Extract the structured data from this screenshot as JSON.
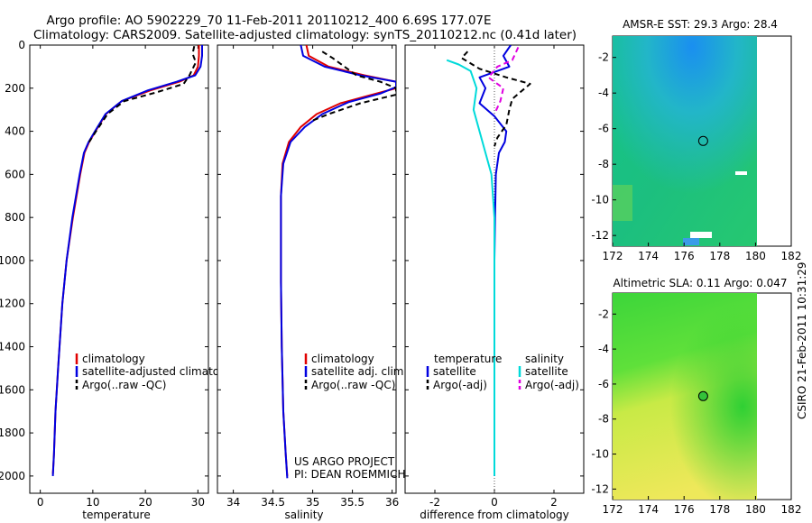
{
  "title": {
    "line1": "Argo profile: AO 5902229_70 11-Feb-2011 20110212_400 6.69S 177.07E",
    "line2": "Climatology: CARS2009. Satellite-adjusted climatology: synTS_20110212.nc (0.41d later)"
  },
  "footer": {
    "project": "US ARGO PROJECT",
    "pi": "PI: DEAN ROEMMICH",
    "stamp": "CSIRO 21-Feb-2011 10:31:29"
  },
  "colors": {
    "climatology": "#e00000",
    "satellite": "#0000e0",
    "argo": "#000000",
    "sat_salinity": "#00dada",
    "argo_salinity": "#e000e0"
  },
  "chart_data": [
    {
      "type": "line",
      "id": "temperature",
      "xlabel": "temperature",
      "ylabel": "",
      "xlim": [
        -2,
        32
      ],
      "ylim": [
        0,
        2080
      ],
      "y_inverted": true,
      "xticks": [
        0,
        10,
        20,
        30
      ],
      "yticks": [
        0,
        200,
        400,
        600,
        800,
        1000,
        1200,
        1400,
        1600,
        1800,
        2000
      ],
      "legend": [
        "climatology",
        "satellite-adjusted climatology",
        "Argo(..raw -QC)"
      ],
      "series": [
        {
          "name": "climatology",
          "color_key": "climatology",
          "dash": "",
          "x": [
            30.2,
            30.2,
            30.0,
            29.2,
            26.5,
            21.0,
            15.5,
            12.5,
            10.5,
            9.3,
            8.4,
            7.6,
            6.2,
            5.0,
            4.2,
            3.4,
            2.9,
            2.6,
            2.4
          ],
          "y": [
            0,
            50,
            100,
            140,
            170,
            210,
            260,
            320,
            400,
            450,
            500,
            600,
            800,
            1000,
            1200,
            1500,
            1700,
            1900,
            1990
          ]
        },
        {
          "name": "satellite-adjusted climatology",
          "color_key": "satellite",
          "dash": "",
          "x": [
            30.8,
            30.8,
            30.5,
            29.5,
            26.0,
            20.5,
            15.5,
            12.4,
            10.4,
            9.2,
            8.3,
            7.5,
            6.1,
            5.0,
            4.2,
            3.4,
            2.9,
            2.6,
            2.4
          ],
          "y": [
            0,
            50,
            100,
            140,
            170,
            210,
            260,
            320,
            400,
            450,
            500,
            600,
            800,
            1000,
            1200,
            1500,
            1700,
            1900,
            2000
          ]
        },
        {
          "name": "Argo(..raw -QC)",
          "color_key": "argo",
          "dash": "6,4",
          "x": [
            29.3,
            29.0,
            29.6,
            28.4,
            27.3,
            22.0,
            16.0,
            12.8,
            10.6,
            9.3
          ],
          "y": [
            5,
            40,
            80,
            140,
            180,
            220,
            260,
            320,
            400,
            450
          ]
        }
      ]
    },
    {
      "type": "line",
      "id": "salinity",
      "xlabel": "salinity",
      "ylabel": "",
      "xlim": [
        33.8,
        36.05
      ],
      "ylim": [
        0,
        2080
      ],
      "y_inverted": true,
      "xticks": [
        34,
        34.5,
        35,
        35.5,
        36
      ],
      "yticks": [
        0,
        200,
        400,
        600,
        800,
        1000,
        1200,
        1400,
        1600,
        1800,
        2000
      ],
      "legend": [
        "climatology",
        "satellite adj. clim.",
        "Argo(..raw -QC)"
      ],
      "series": [
        {
          "name": "climatology",
          "color_key": "climatology",
          "dash": "",
          "x": [
            34.92,
            34.95,
            35.2,
            35.65,
            36.05,
            36.05,
            35.75,
            35.35,
            35.05,
            34.85,
            34.7,
            34.62,
            34.6,
            34.6,
            34.6,
            34.61,
            34.63,
            34.66,
            34.68
          ],
          "y": [
            0,
            50,
            100,
            140,
            170,
            200,
            230,
            270,
            320,
            380,
            450,
            550,
            700,
            900,
            1100,
            1400,
            1700,
            1900,
            2000
          ]
        },
        {
          "name": "satellite adj. clim.",
          "color_key": "satellite",
          "dash": "",
          "x": [
            34.85,
            34.88,
            35.15,
            35.6,
            36.05,
            36.05,
            35.85,
            35.45,
            35.12,
            34.9,
            34.72,
            34.63,
            34.6,
            34.6,
            34.6,
            34.61,
            34.63,
            34.66,
            34.68
          ],
          "y": [
            0,
            50,
            100,
            140,
            170,
            195,
            225,
            265,
            320,
            380,
            450,
            550,
            700,
            900,
            1100,
            1400,
            1700,
            1900,
            2010
          ]
        },
        {
          "name": "Argo(..raw -QC)",
          "color_key": "argo",
          "dash": "6,4",
          "x": [
            35.12,
            35.25,
            35.4,
            35.55,
            35.85,
            36.05,
            36.05,
            35.6,
            35.2,
            35.0
          ],
          "y": [
            30,
            60,
            100,
            140,
            170,
            200,
            230,
            270,
            320,
            350
          ]
        }
      ]
    },
    {
      "type": "line",
      "id": "difference",
      "xlabel": "difference from climatology",
      "ylabel": "",
      "xlim": [
        -3,
        3
      ],
      "ylim": [
        0,
        2080
      ],
      "y_inverted": true,
      "xticks": [
        -2,
        0,
        2
      ],
      "yticks": [
        0,
        200,
        400,
        600,
        800,
        1000,
        1200,
        1400,
        1600,
        1800,
        2000
      ],
      "legend_headers": [
        "temperature",
        "salinity"
      ],
      "legend": [
        "satellite",
        "Argo(-adj)",
        "satellite",
        "Argo(-adj)"
      ],
      "series": [
        {
          "name": "satellite (temperature)",
          "color_key": "satellite",
          "dash": "",
          "x": [
            0.55,
            0.3,
            0.5,
            -0.5,
            -0.3,
            -0.5,
            0.0,
            0.4,
            0.35,
            0.15,
            0.05,
            0.02,
            0.0,
            0.0,
            0.0
          ],
          "y": [
            0,
            50,
            100,
            150,
            200,
            270,
            330,
            400,
            450,
            500,
            600,
            800,
            1000,
            1500,
            2000
          ]
        },
        {
          "name": "Argo(-adj) (temperature)",
          "color_key": "argo",
          "dash": "6,4",
          "x": [
            -0.9,
            -1.1,
            -0.5,
            0.4,
            1.2,
            0.6,
            0.5,
            0.4,
            0.1,
            0.0
          ],
          "y": [
            30,
            60,
            110,
            150,
            180,
            250,
            300,
            370,
            430,
            470
          ]
        },
        {
          "name": "satellite (salinity)",
          "color_key": "sat_salinity",
          "dash": "",
          "x": [
            -1.6,
            -1.2,
            -0.8,
            -0.6,
            -0.7,
            -0.5,
            -0.3,
            -0.1,
            0.0,
            0.0,
            0.0
          ],
          "y": [
            70,
            90,
            120,
            200,
            300,
            400,
            500,
            600,
            800,
            1000,
            2000
          ]
        },
        {
          "name": "Argo(-adj) (salinity)",
          "color_key": "argo_salinity",
          "dash": "6,4",
          "x": [
            0.8,
            0.7,
            0.6,
            0.1,
            -0.2,
            0.3,
            0.2,
            0.0
          ],
          "y": [
            10,
            40,
            70,
            100,
            150,
            200,
            260,
            320
          ]
        }
      ]
    },
    {
      "type": "heatmap",
      "id": "sst_map",
      "title": "AMSR-E SST: 29.3 Argo: 28.4",
      "xlim": [
        172,
        182
      ],
      "ylim": [
        -12.6,
        -0.8
      ],
      "xticks": [
        172,
        174,
        176,
        178,
        180,
        182
      ],
      "yticks": [
        -2,
        -4,
        -6,
        -8,
        -10,
        -12
      ],
      "argo_position": [
        177.07,
        -6.69
      ],
      "data_extent": [
        172,
        180.2
      ]
    },
    {
      "type": "heatmap",
      "id": "sla_map",
      "title": "Altimetric SLA: 0.11 Argo: 0.047",
      "xlim": [
        172,
        182
      ],
      "ylim": [
        -12.6,
        -0.8
      ],
      "xticks": [
        172,
        174,
        176,
        178,
        180,
        182
      ],
      "yticks": [
        -2,
        -4,
        -6,
        -8,
        -10,
        -12
      ],
      "argo_position": [
        177.07,
        -6.69
      ],
      "data_extent": [
        172,
        180.2
      ]
    }
  ]
}
